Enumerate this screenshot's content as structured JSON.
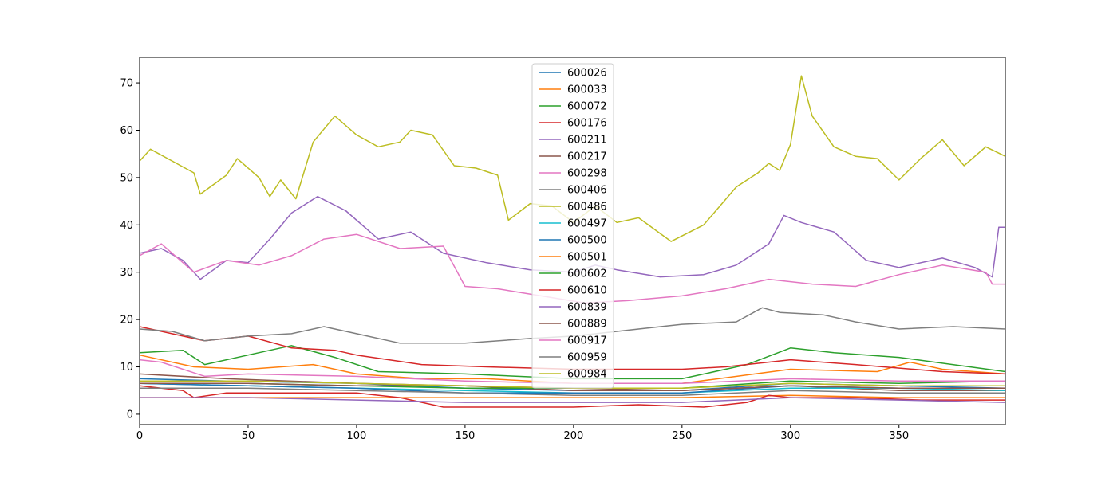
{
  "chart_data": {
    "type": "line",
    "title": "",
    "xlabel": "",
    "ylabel": "",
    "xlim": [
      0,
      399
    ],
    "ylim": [
      -2.2,
      75.4
    ],
    "xticks": [
      0,
      50,
      100,
      150,
      200,
      250,
      300,
      350
    ],
    "yticks": [
      0,
      10,
      20,
      30,
      40,
      50,
      60,
      70
    ],
    "grid": false,
    "legend": "top-center",
    "series": [
      {
        "name": "600026",
        "color": "#1f77b4",
        "points": [
          [
            0,
            7.5
          ],
          [
            40,
            7.0
          ],
          [
            100,
            6.5
          ],
          [
            150,
            5.5
          ],
          [
            200,
            5.0
          ],
          [
            250,
            5.0
          ],
          [
            300,
            6.5
          ],
          [
            350,
            6.0
          ],
          [
            399,
            5.5
          ]
        ]
      },
      {
        "name": "600033",
        "color": "#ff7f0e",
        "points": [
          [
            0,
            12.5
          ],
          [
            25,
            10.0
          ],
          [
            50,
            9.5
          ],
          [
            80,
            10.5
          ],
          [
            100,
            8.5
          ],
          [
            130,
            7.5
          ],
          [
            160,
            7.5
          ],
          [
            200,
            6.5
          ],
          [
            250,
            6.5
          ],
          [
            300,
            9.5
          ],
          [
            340,
            9.0
          ],
          [
            355,
            11.0
          ],
          [
            370,
            9.5
          ],
          [
            399,
            8.5
          ]
        ]
      },
      {
        "name": "600072",
        "color": "#2ca02c",
        "points": [
          [
            0,
            13.0
          ],
          [
            20,
            13.5
          ],
          [
            30,
            10.5
          ],
          [
            50,
            12.5
          ],
          [
            70,
            14.5
          ],
          [
            90,
            12.0
          ],
          [
            110,
            9.0
          ],
          [
            150,
            8.5
          ],
          [
            200,
            7.5
          ],
          [
            250,
            7.5
          ],
          [
            280,
            10.5
          ],
          [
            300,
            14.0
          ],
          [
            320,
            13.0
          ],
          [
            350,
            12.0
          ],
          [
            399,
            9.0
          ]
        ]
      },
      {
        "name": "600176",
        "color": "#d62728",
        "points": [
          [
            0,
            18.5
          ],
          [
            20,
            16.5
          ],
          [
            30,
            15.5
          ],
          [
            50,
            16.5
          ],
          [
            70,
            14.0
          ],
          [
            90,
            13.5
          ],
          [
            100,
            12.5
          ],
          [
            130,
            10.5
          ],
          [
            160,
            10.0
          ],
          [
            200,
            9.5
          ],
          [
            250,
            9.5
          ],
          [
            270,
            10.0
          ],
          [
            300,
            11.5
          ],
          [
            330,
            10.5
          ],
          [
            370,
            9.0
          ],
          [
            399,
            8.5
          ]
        ]
      },
      {
        "name": "600211",
        "color": "#9467bd",
        "points": [
          [
            0,
            34.0
          ],
          [
            10,
            35.0
          ],
          [
            20,
            32.5
          ],
          [
            28,
            28.5
          ],
          [
            40,
            32.5
          ],
          [
            50,
            32.0
          ],
          [
            60,
            37.0
          ],
          [
            70,
            42.5
          ],
          [
            82,
            46.0
          ],
          [
            95,
            43.0
          ],
          [
            110,
            37.0
          ],
          [
            125,
            38.5
          ],
          [
            140,
            34.0
          ],
          [
            160,
            32.0
          ],
          [
            180,
            30.5
          ],
          [
            200,
            30.0
          ],
          [
            210,
            31.5
          ],
          [
            220,
            30.5
          ],
          [
            240,
            29.0
          ],
          [
            260,
            29.5
          ],
          [
            275,
            31.5
          ],
          [
            290,
            36.0
          ],
          [
            297,
            42.0
          ],
          [
            305,
            40.5
          ],
          [
            320,
            38.5
          ],
          [
            335,
            32.5
          ],
          [
            350,
            31.0
          ],
          [
            370,
            33.0
          ],
          [
            385,
            31.0
          ],
          [
            393,
            29.0
          ],
          [
            396,
            39.5
          ],
          [
            399,
            39.5
          ]
        ]
      },
      {
        "name": "600217",
        "color": "#8c564b",
        "points": [
          [
            0,
            8.5
          ],
          [
            40,
            7.5
          ],
          [
            100,
            6.5
          ],
          [
            150,
            6.0
          ],
          [
            200,
            5.0
          ],
          [
            250,
            5.0
          ],
          [
            300,
            6.0
          ],
          [
            350,
            5.0
          ],
          [
            399,
            5.0
          ]
        ]
      },
      {
        "name": "600298",
        "color": "#e377c2",
        "points": [
          [
            0,
            33.5
          ],
          [
            10,
            36.0
          ],
          [
            25,
            30.0
          ],
          [
            40,
            32.5
          ],
          [
            55,
            31.5
          ],
          [
            70,
            33.5
          ],
          [
            85,
            37.0
          ],
          [
            100,
            38.0
          ],
          [
            120,
            35.0
          ],
          [
            140,
            35.5
          ],
          [
            150,
            27.0
          ],
          [
            165,
            26.5
          ],
          [
            185,
            25.0
          ],
          [
            205,
            23.5
          ],
          [
            225,
            24.0
          ],
          [
            250,
            25.0
          ],
          [
            270,
            26.5
          ],
          [
            290,
            28.5
          ],
          [
            310,
            27.5
          ],
          [
            330,
            27.0
          ],
          [
            350,
            29.5
          ],
          [
            370,
            31.5
          ],
          [
            390,
            30.0
          ],
          [
            393,
            27.5
          ],
          [
            399,
            27.5
          ]
        ]
      },
      {
        "name": "600406",
        "color": "#7f7f7f",
        "points": [
          [
            0,
            18.0
          ],
          [
            15,
            17.5
          ],
          [
            30,
            15.5
          ],
          [
            50,
            16.5
          ],
          [
            70,
            17.0
          ],
          [
            85,
            18.5
          ],
          [
            100,
            17.0
          ],
          [
            120,
            15.0
          ],
          [
            150,
            15.0
          ],
          [
            180,
            16.0
          ],
          [
            200,
            16.5
          ],
          [
            230,
            18.0
          ],
          [
            250,
            19.0
          ],
          [
            275,
            19.5
          ],
          [
            287,
            22.5
          ],
          [
            295,
            21.5
          ],
          [
            315,
            21.0
          ],
          [
            330,
            19.5
          ],
          [
            350,
            18.0
          ],
          [
            375,
            18.5
          ],
          [
            399,
            18.0
          ]
        ]
      },
      {
        "name": "600486",
        "color": "#bcbd22",
        "points": [
          [
            0,
            53.5
          ],
          [
            5,
            56.0
          ],
          [
            15,
            53.5
          ],
          [
            25,
            51.0
          ],
          [
            28,
            46.5
          ],
          [
            40,
            50.5
          ],
          [
            45,
            54.0
          ],
          [
            55,
            50.0
          ],
          [
            60,
            46.0
          ],
          [
            65,
            49.5
          ],
          [
            72,
            45.5
          ],
          [
            80,
            57.5
          ],
          [
            90,
            63.0
          ],
          [
            100,
            59.0
          ],
          [
            110,
            56.5
          ],
          [
            120,
            57.5
          ],
          [
            125,
            60.0
          ],
          [
            135,
            59.0
          ],
          [
            145,
            52.5
          ],
          [
            155,
            52.0
          ],
          [
            165,
            50.5
          ],
          [
            170,
            41.0
          ],
          [
            180,
            44.5
          ],
          [
            190,
            44.0
          ],
          [
            200,
            40.5
          ],
          [
            210,
            44.0
          ],
          [
            220,
            40.5
          ],
          [
            230,
            41.5
          ],
          [
            245,
            36.5
          ],
          [
            260,
            40.0
          ],
          [
            275,
            48.0
          ],
          [
            285,
            51.0
          ],
          [
            290,
            53.0
          ],
          [
            295,
            51.5
          ],
          [
            300,
            57.0
          ],
          [
            305,
            71.5
          ],
          [
            310,
            63.0
          ],
          [
            320,
            56.5
          ],
          [
            330,
            54.5
          ],
          [
            340,
            54.0
          ],
          [
            350,
            49.5
          ],
          [
            360,
            54.0
          ],
          [
            370,
            58.0
          ],
          [
            380,
            52.5
          ],
          [
            390,
            56.5
          ],
          [
            399,
            54.5
          ]
        ]
      },
      {
        "name": "600497",
        "color": "#17becf",
        "points": [
          [
            0,
            6.5
          ],
          [
            50,
            6.0
          ],
          [
            100,
            5.5
          ],
          [
            150,
            5.0
          ],
          [
            200,
            4.5
          ],
          [
            250,
            4.5
          ],
          [
            300,
            5.5
          ],
          [
            350,
            5.5
          ],
          [
            399,
            5.0
          ]
        ]
      },
      {
        "name": "600500",
        "color": "#1f77b4",
        "points": [
          [
            0,
            6.5
          ],
          [
            50,
            6.0
          ],
          [
            100,
            5.5
          ],
          [
            150,
            4.5
          ],
          [
            200,
            4.5
          ],
          [
            250,
            4.5
          ],
          [
            300,
            6.0
          ],
          [
            350,
            5.5
          ],
          [
            399,
            5.5
          ]
        ]
      },
      {
        "name": "600501",
        "color": "#ff7f0e",
        "points": [
          [
            0,
            3.5
          ],
          [
            50,
            3.5
          ],
          [
            100,
            3.5
          ],
          [
            150,
            3.5
          ],
          [
            200,
            3.5
          ],
          [
            250,
            3.5
          ],
          [
            300,
            4.0
          ],
          [
            350,
            3.5
          ],
          [
            399,
            3.5
          ]
        ]
      },
      {
        "name": "600602",
        "color": "#2ca02c",
        "points": [
          [
            0,
            6.5
          ],
          [
            50,
            6.5
          ],
          [
            100,
            6.0
          ],
          [
            150,
            5.5
          ],
          [
            200,
            5.5
          ],
          [
            250,
            5.5
          ],
          [
            300,
            7.0
          ],
          [
            350,
            6.5
          ],
          [
            399,
            7.0
          ]
        ]
      },
      {
        "name": "600610",
        "color": "#d62728",
        "points": [
          [
            0,
            6.0
          ],
          [
            20,
            5.0
          ],
          [
            25,
            3.5
          ],
          [
            40,
            4.5
          ],
          [
            100,
            4.5
          ],
          [
            120,
            3.5
          ],
          [
            140,
            1.5
          ],
          [
            170,
            1.5
          ],
          [
            200,
            1.5
          ],
          [
            230,
            2.0
          ],
          [
            260,
            1.5
          ],
          [
            280,
            2.5
          ],
          [
            290,
            4.0
          ],
          [
            300,
            3.5
          ],
          [
            330,
            3.5
          ],
          [
            360,
            3.0
          ],
          [
            399,
            3.0
          ]
        ]
      },
      {
        "name": "600839",
        "color": "#9467bd",
        "points": [
          [
            0,
            3.5
          ],
          [
            50,
            3.5
          ],
          [
            100,
            3.0
          ],
          [
            150,
            2.5
          ],
          [
            200,
            2.5
          ],
          [
            250,
            2.5
          ],
          [
            300,
            3.5
          ],
          [
            350,
            3.0
          ],
          [
            399,
            2.5
          ]
        ]
      },
      {
        "name": "600889",
        "color": "#8c564b",
        "points": [
          [
            0,
            6.5
          ],
          [
            50,
            6.5
          ],
          [
            100,
            6.0
          ],
          [
            150,
            6.0
          ],
          [
            200,
            5.5
          ],
          [
            250,
            5.0
          ],
          [
            300,
            6.0
          ],
          [
            350,
            5.5
          ],
          [
            399,
            5.5
          ]
        ]
      },
      {
        "name": "600917",
        "color": "#e377c2",
        "points": [
          [
            0,
            11.5
          ],
          [
            10,
            11.0
          ],
          [
            30,
            8.0
          ],
          [
            50,
            8.5
          ],
          [
            100,
            8.0
          ],
          [
            150,
            7.0
          ],
          [
            200,
            6.5
          ],
          [
            250,
            6.5
          ],
          [
            300,
            7.5
          ],
          [
            350,
            7.0
          ],
          [
            399,
            7.0
          ]
        ]
      },
      {
        "name": "600959",
        "color": "#7f7f7f",
        "points": [
          [
            0,
            5.5
          ],
          [
            50,
            5.5
          ],
          [
            100,
            5.0
          ],
          [
            150,
            4.5
          ],
          [
            200,
            4.0
          ],
          [
            250,
            4.0
          ],
          [
            300,
            5.0
          ],
          [
            350,
            4.5
          ],
          [
            399,
            4.5
          ]
        ]
      },
      {
        "name": "600984",
        "color": "#bcbd22",
        "points": [
          [
            0,
            7.0
          ],
          [
            50,
            7.0
          ],
          [
            100,
            6.5
          ],
          [
            150,
            6.0
          ],
          [
            200,
            5.5
          ],
          [
            250,
            5.5
          ],
          [
            300,
            6.5
          ],
          [
            350,
            6.0
          ],
          [
            399,
            6.0
          ]
        ]
      }
    ]
  }
}
